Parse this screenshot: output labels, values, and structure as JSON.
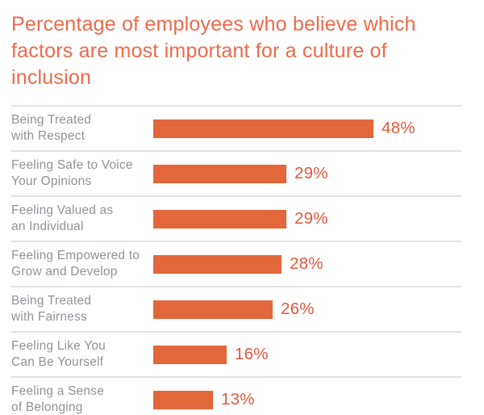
{
  "title": "Percentage of employees who believe which factors are most important for a culture of inclusion",
  "colors": {
    "background": "#FFFFFF",
    "title": "#ED6A4B",
    "bar": "#E2673A",
    "value_label": "#E4573B",
    "category_label": "#8F9497",
    "divider": "#E3E3E4"
  },
  "chart_data": {
    "type": "bar",
    "orientation": "horizontal",
    "title": "Percentage of employees who believe which factors are most important for a culture of inclusion",
    "categories": [
      "Being Treated with Respect",
      "Feeling Safe to Voice Your Opinions",
      "Feeling Valued as an Individual",
      "Feeling Empowered to Grow and Develop",
      "Being Treated with Fairness",
      "Feeling Like You Can Be Yourself",
      "Feeling a Sense of Belonging"
    ],
    "category_display_lines": [
      [
        "Being Treated",
        "with Respect"
      ],
      [
        "Feeling Safe to Voice",
        "Your Opinions"
      ],
      [
        "Feeling Valued as",
        "an Individual"
      ],
      [
        "Feeling Empowered to",
        "Grow and Develop"
      ],
      [
        "Being Treated",
        "with Fairness"
      ],
      [
        "Feeling Like You",
        "Can Be Yourself"
      ],
      [
        "Feeling a Sense",
        "of Belonging"
      ]
    ],
    "values": [
      48,
      29,
      29,
      28,
      26,
      16,
      13
    ],
    "value_labels": [
      "48%",
      "29%",
      "29%",
      "28%",
      "26%",
      "16%",
      "13%"
    ],
    "unit": "%",
    "xlim": [
      0,
      100
    ],
    "xlabel": "",
    "ylabel": "",
    "grid": false,
    "legend": "none",
    "value_label_position": "right-of-bar",
    "row_dividers": true
  }
}
